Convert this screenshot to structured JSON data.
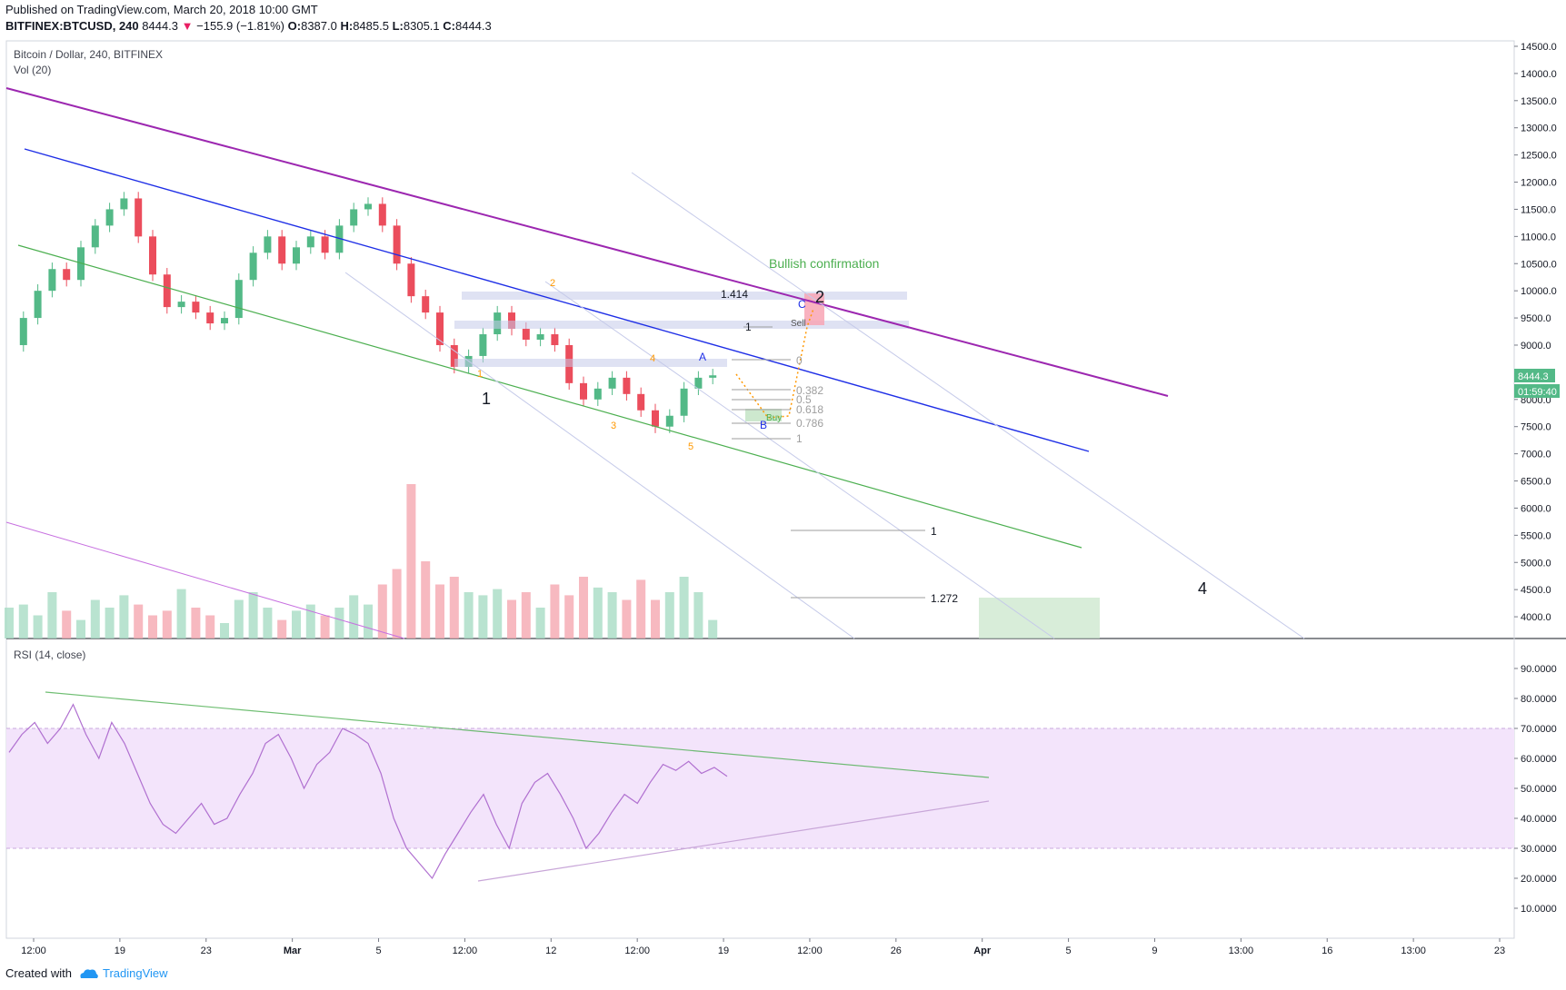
{
  "header": {
    "published": "Published on TradingView.com, March 20, 2018 10:00 GMT",
    "symbol": "BITFINEX:BTCUSD, 240",
    "last": "8444.3",
    "change": "−155.9 (−1.81%)",
    "o_label": "O:",
    "o": "8387.0",
    "h_label": "H:",
    "h": "8485.5",
    "l_label": "L:",
    "l": "8305.1",
    "c_label": "C:",
    "c": "8444.3"
  },
  "legend": {
    "main": "Bitcoin / Dollar, 240, BITFINEX",
    "volume": "Vol (20)",
    "rsi": "RSI (14, close)"
  },
  "footer": {
    "created": "Created with",
    "brand": "TradingView"
  },
  "colors": {
    "up": "#53b987",
    "down": "#eb4d5c",
    "purple": "#9c27b0",
    "blue": "#1e2ee6",
    "green": "#4caf50",
    "orange": "#ff9800",
    "rsi": "#b070d0",
    "rsi_band": "#f3e4fb"
  },
  "chart_data": [
    {
      "type": "candlestick",
      "title": "Bitcoin / Dollar, 240, BITFINEX",
      "ylim": [
        3600,
        14600
      ],
      "y_ticks": [
        "14500.0",
        "14000.0",
        "13500.0",
        "13000.0",
        "12500.0",
        "12000.0",
        "11500.0",
        "11000.0",
        "10500.0",
        "10000.0",
        "9500.0",
        "9000.0",
        "8500.0",
        "8000.0",
        "7500.0",
        "7000.0",
        "6500.0",
        "6000.0",
        "5500.0",
        "5000.0",
        "4500.0",
        "4000.0"
      ],
      "x_ticks": [
        "12:00",
        "19",
        "23",
        "Mar",
        "5",
        "12:00",
        "12",
        "12:00",
        "19",
        "12:00",
        "26",
        "Apr",
        "5",
        "9",
        "13:00",
        "16",
        "13:00",
        "23"
      ],
      "last_price": "8444.3",
      "countdown": "01:59:40",
      "close_path": [
        9000,
        9500,
        10000,
        10400,
        10200,
        10800,
        11200,
        11500,
        11700,
        11000,
        10300,
        9700,
        9800,
        9600,
        9400,
        9500,
        10200,
        10700,
        11000,
        10500,
        10800,
        11000,
        10700,
        11200,
        11500,
        11600,
        11200,
        10500,
        9900,
        9600,
        9000,
        8600,
        8800,
        9200,
        9600,
        9300,
        9100,
        9200,
        9000,
        8300,
        8000,
        8200,
        8400,
        8100,
        7800,
        7500,
        7700,
        8200,
        8400,
        8444
      ],
      "volume_ylim": [
        0,
        100
      ],
      "volume_path": [
        20,
        22,
        15,
        30,
        18,
        12,
        25,
        20,
        28,
        22,
        15,
        18,
        32,
        20,
        15,
        10,
        25,
        30,
        20,
        12,
        18,
        22,
        15,
        20,
        28,
        22,
        35,
        45,
        100,
        50,
        35,
        40,
        30,
        28,
        32,
        25,
        30,
        20,
        35,
        28,
        40,
        33,
        30,
        25,
        38,
        25,
        30,
        40,
        30,
        12
      ],
      "annotations": {
        "text": [
          "Bullish confirmation",
          "Sell",
          "Buy"
        ],
        "elliott": [
          "1",
          "2",
          "3",
          "4",
          "5",
          "1",
          "2",
          "A",
          "B",
          "C",
          "4"
        ],
        "fib": [
          "1.414",
          "1",
          "0",
          "0.382",
          "0.5",
          "0.618",
          "0.786",
          "1",
          "1",
          "1.272"
        ]
      }
    },
    {
      "type": "line",
      "title": "RSI (14, close)",
      "ylim": [
        0,
        100
      ],
      "y_ticks": [
        "90.0000",
        "80.0000",
        "70.0000",
        "60.0000",
        "50.0000",
        "40.0000",
        "30.0000",
        "20.0000",
        "10.0000"
      ],
      "band": [
        30,
        70
      ],
      "values": [
        62,
        68,
        72,
        65,
        70,
        78,
        68,
        60,
        72,
        65,
        55,
        45,
        38,
        35,
        40,
        45,
        38,
        40,
        48,
        55,
        65,
        68,
        60,
        50,
        58,
        62,
        70,
        68,
        65,
        55,
        40,
        30,
        25,
        20,
        28,
        35,
        42,
        48,
        38,
        30,
        45,
        52,
        55,
        48,
        40,
        30,
        35,
        42,
        48,
        45,
        52,
        58,
        56,
        59,
        55,
        57,
        54
      ]
    }
  ]
}
